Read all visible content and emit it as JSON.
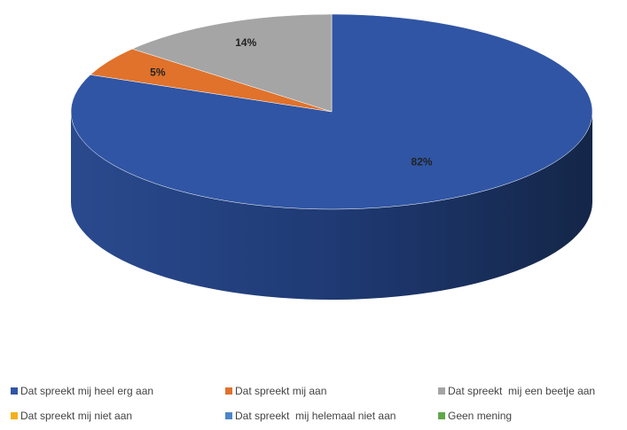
{
  "chart_data": {
    "type": "pie",
    "title": "",
    "style": "3d",
    "slices": [
      {
        "label": "Dat spreekt mij heel erg aan",
        "value": 82,
        "display": "82%",
        "color": "#3055a4"
      },
      {
        "label": "Dat spreekt mij aan",
        "value": 5,
        "display": "5%",
        "color": "#e0722c"
      },
      {
        "label": "Dat spreekt  mij een beetje aan",
        "value": 14,
        "display": "14%",
        "color": "#a5a5a5"
      },
      {
        "label": "Dat spreekt mij niet aan",
        "value": 0,
        "display": "",
        "color": "#f2b01e"
      },
      {
        "label": "Dat spreekt  mij helemaal niet aan",
        "value": 0,
        "display": "",
        "color": "#4a87c8"
      },
      {
        "label": "Geen mening",
        "value": 0,
        "display": "",
        "color": "#5fa84a"
      }
    ],
    "legend_placement": "bottom"
  }
}
